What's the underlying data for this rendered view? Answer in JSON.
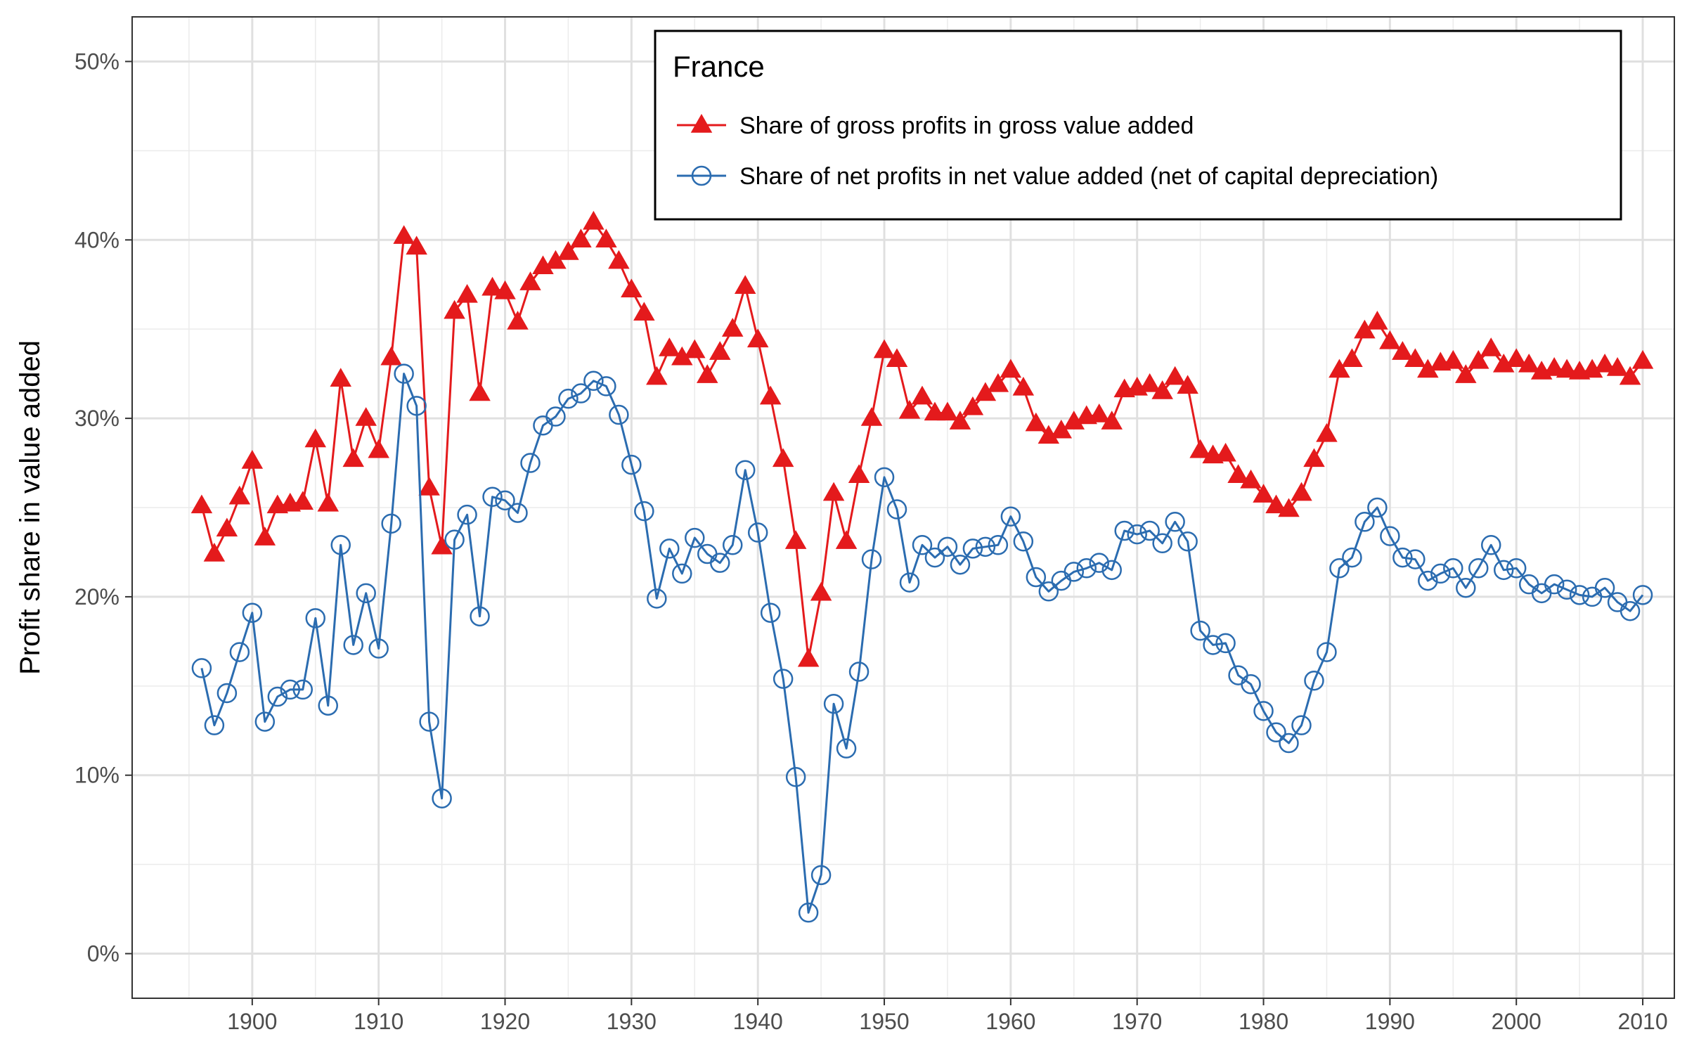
{
  "chart_data": {
    "type": "line",
    "ylabel": "Profit share in value added",
    "xlim": [
      1890.5,
      2012.5
    ],
    "ylim": [
      -0.025,
      0.525
    ],
    "x_ticks": [
      1900,
      1910,
      1920,
      1930,
      1940,
      1950,
      1960,
      1970,
      1980,
      1990,
      2000,
      2010
    ],
    "y_ticks": [
      0,
      0.1,
      0.2,
      0.3,
      0.4,
      0.5
    ],
    "y_tick_labels": [
      "0%",
      "10%",
      "20%",
      "30%",
      "40%",
      "50%"
    ],
    "grid": true,
    "legend": {
      "title": "France",
      "position": "top-right"
    },
    "x": [
      1896,
      1897,
      1898,
      1899,
      1900,
      1901,
      1902,
      1903,
      1904,
      1905,
      1906,
      1907,
      1908,
      1909,
      1910,
      1911,
      1912,
      1913,
      1914,
      1915,
      1916,
      1917,
      1918,
      1919,
      1920,
      1921,
      1922,
      1923,
      1924,
      1925,
      1926,
      1927,
      1928,
      1929,
      1930,
      1931,
      1932,
      1933,
      1934,
      1935,
      1936,
      1937,
      1938,
      1939,
      1940,
      1941,
      1942,
      1943,
      1944,
      1945,
      1946,
      1947,
      1948,
      1949,
      1950,
      1951,
      1952,
      1953,
      1954,
      1955,
      1956,
      1957,
      1958,
      1959,
      1960,
      1961,
      1962,
      1963,
      1964,
      1965,
      1966,
      1967,
      1968,
      1969,
      1970,
      1971,
      1972,
      1973,
      1974,
      1975,
      1976,
      1977,
      1978,
      1979,
      1980,
      1981,
      1982,
      1983,
      1984,
      1985,
      1986,
      1987,
      1988,
      1989,
      1990,
      1991,
      1992,
      1993,
      1994,
      1995,
      1996,
      1997,
      1998,
      1999,
      2000,
      2001,
      2002,
      2003,
      2004,
      2005,
      2006,
      2007,
      2008,
      2009,
      2010
    ],
    "series": [
      {
        "name": "Share of gross profits in gross value added",
        "color": "#e41a1c",
        "marker": "triangle-filled",
        "values": [
          0.251,
          0.224,
          0.238,
          0.256,
          0.276,
          0.233,
          0.251,
          0.252,
          0.253,
          0.288,
          0.252,
          0.322,
          0.277,
          0.3,
          0.282,
          0.334,
          0.402,
          0.396,
          0.261,
          0.228,
          0.36,
          0.369,
          0.314,
          0.373,
          0.371,
          0.354,
          0.376,
          0.385,
          0.388,
          0.393,
          0.4,
          0.41,
          0.4,
          0.388,
          0.372,
          0.359,
          0.323,
          0.339,
          0.334,
          0.338,
          0.324,
          0.337,
          0.35,
          0.374,
          0.344,
          0.312,
          0.277,
          0.231,
          0.165,
          0.202,
          0.258,
          0.231,
          0.268,
          0.3,
          0.338,
          0.333,
          0.304,
          0.312,
          0.303,
          0.303,
          0.298,
          0.306,
          0.314,
          0.319,
          0.327,
          0.317,
          0.297,
          0.29,
          0.293,
          0.298,
          0.301,
          0.302,
          0.298,
          0.316,
          0.317,
          0.319,
          0.315,
          0.323,
          0.318,
          0.282,
          0.279,
          0.28,
          0.268,
          0.265,
          0.257,
          0.251,
          0.249,
          0.258,
          0.277,
          0.291,
          0.327,
          0.333,
          0.349,
          0.354,
          0.343,
          0.337,
          0.333,
          0.327,
          0.331,
          0.332,
          0.324,
          0.332,
          0.339,
          0.33,
          0.333,
          0.33,
          0.326,
          0.328,
          0.327,
          0.326,
          0.327,
          0.33,
          0.328,
          0.323,
          0.332
        ]
      },
      {
        "name": "Share of net profits in net value added (net of capital depreciation)",
        "color": "#2b6cb0",
        "marker": "circle-open",
        "values": [
          0.16,
          0.128,
          0.146,
          0.169,
          0.191,
          0.13,
          0.144,
          0.148,
          0.148,
          0.188,
          0.139,
          0.229,
          0.173,
          0.202,
          0.171,
          0.241,
          0.325,
          0.307,
          0.13,
          0.087,
          0.232,
          0.246,
          0.189,
          0.256,
          0.254,
          0.247,
          0.275,
          0.296,
          0.301,
          0.311,
          0.314,
          0.321,
          0.318,
          0.302,
          0.274,
          0.248,
          0.199,
          0.227,
          0.213,
          0.233,
          0.224,
          0.219,
          0.229,
          0.271,
          0.236,
          0.191,
          0.154,
          0.099,
          0.023,
          0.044,
          0.14,
          0.115,
          0.158,
          0.221,
          0.267,
          0.249,
          0.208,
          0.229,
          0.222,
          0.228,
          0.218,
          0.227,
          0.228,
          0.229,
          0.245,
          0.231,
          0.211,
          0.203,
          0.209,
          0.214,
          0.216,
          0.219,
          0.215,
          0.237,
          0.235,
          0.237,
          0.23,
          0.242,
          0.231,
          0.181,
          0.173,
          0.174,
          0.156,
          0.151,
          0.136,
          0.124,
          0.118,
          0.128,
          0.153,
          0.169,
          0.216,
          0.222,
          0.242,
          0.25,
          0.234,
          0.222,
          0.221,
          0.209,
          0.213,
          0.216,
          0.205,
          0.216,
          0.229,
          0.215,
          0.216,
          0.207,
          0.202,
          0.207,
          0.204,
          0.201,
          0.2,
          0.205,
          0.197,
          0.192,
          0.201
        ]
      }
    ]
  }
}
